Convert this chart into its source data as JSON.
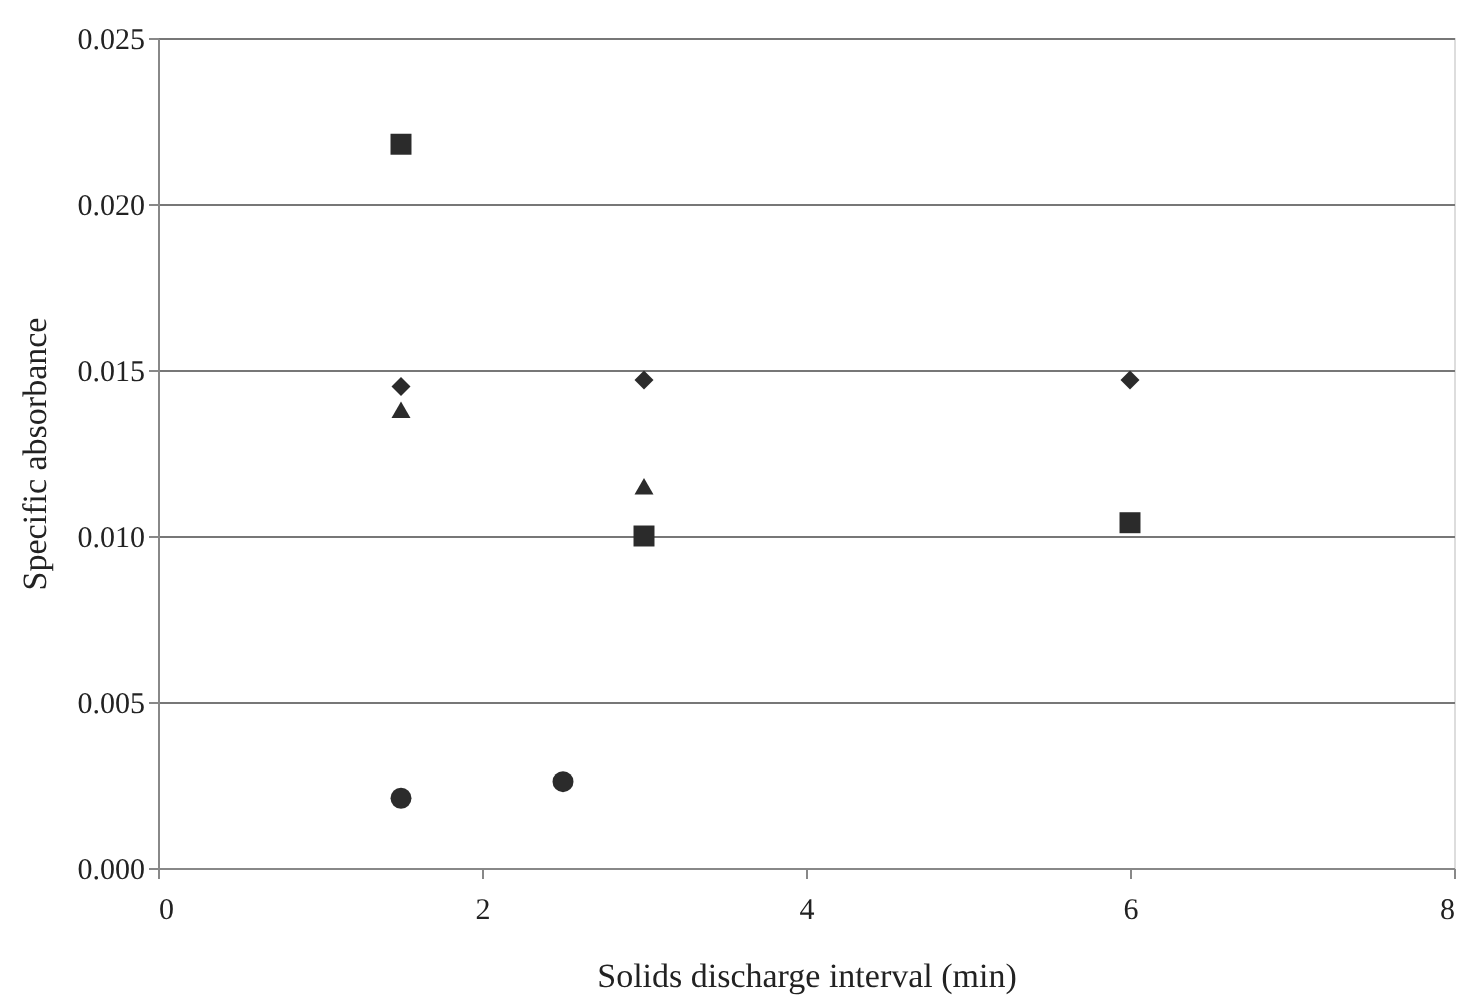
{
  "chart_data": {
    "type": "scatter",
    "xlabel": "Solids discharge interval (min)",
    "ylabel": "Specific absorbance",
    "xlim": [
      0,
      8
    ],
    "xticks": [
      0,
      2,
      4,
      6,
      8
    ],
    "ylim": [
      0,
      0.025
    ],
    "yticks": [
      {
        "value": 0,
        "label": "0.000"
      },
      {
        "value": 0.005,
        "label": "0.005"
      },
      {
        "value": 0.01,
        "label": "0.010"
      },
      {
        "value": 0.015,
        "label": "0.015"
      },
      {
        "value": 0.02,
        "label": "0.020"
      },
      {
        "value": 0.025,
        "label": "0.025"
      }
    ],
    "grid": "y",
    "series": [
      {
        "color": "#2b2b2b",
        "marker": "diamond",
        "x": [
          1.5,
          3,
          6
        ],
        "values": [
          0.0145,
          0.0147,
          0.0147
        ]
      },
      {
        "color": "#2b2b2b",
        "marker": "square",
        "x": [
          1.5,
          3,
          6
        ],
        "values": [
          0.0218,
          0.01,
          0.0104
        ]
      },
      {
        "color": "#2b2b2b",
        "marker": "triangle",
        "x": [
          1.5,
          3
        ],
        "values": [
          0.0138,
          0.0115
        ]
      },
      {
        "color": "#2b2b2b",
        "marker": "circle",
        "x": [
          1.5,
          2.5
        ],
        "values": [
          0.0021,
          0.0026
        ]
      }
    ]
  }
}
